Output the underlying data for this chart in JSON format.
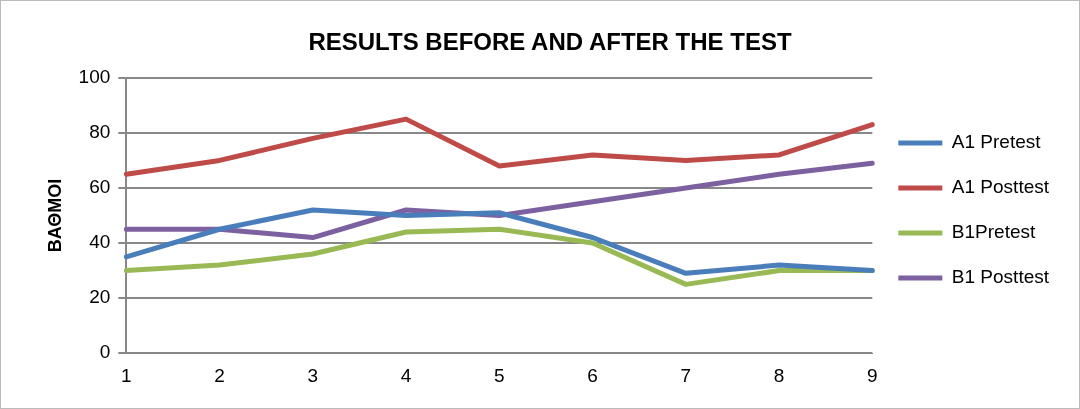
{
  "chart_data": {
    "type": "line",
    "title": "RESULTS BEFORE AND AFTER THE TEST",
    "ylabel": "ΒΑΘΜΟΙ",
    "categories": [
      "1",
      "2",
      "3",
      "4",
      "5",
      "6",
      "7",
      "8",
      "9"
    ],
    "series": [
      {
        "name": "A1 Pretest",
        "color": "#4a7ebb",
        "values": [
          35,
          45,
          52,
          50,
          51,
          42,
          29,
          32,
          30
        ]
      },
      {
        "name": "A1 Posttest",
        "color": "#be4b48",
        "values": [
          65,
          70,
          78,
          85,
          68,
          72,
          70,
          72,
          83
        ]
      },
      {
        "name": "B1Pretest",
        "color": "#98b954",
        "values": [
          30,
          32,
          36,
          44,
          45,
          40,
          25,
          30,
          30
        ]
      },
      {
        "name": "B1 Posttest",
        "color": "#7d60a0",
        "values": [
          45,
          45,
          42,
          52,
          50,
          55,
          60,
          65,
          69
        ]
      }
    ],
    "ylim": [
      0,
      100
    ],
    "yticks": [
      0,
      20,
      40,
      60,
      80,
      100
    ],
    "grid": "y",
    "legend": "right",
    "marker": "none",
    "line_style": "solid"
  }
}
